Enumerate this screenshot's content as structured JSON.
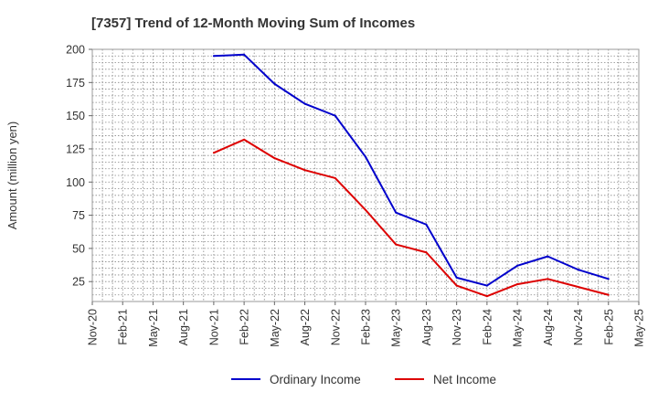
{
  "chart_data": {
    "type": "line",
    "title": "[7357]  Trend of 12-Month Moving Sum of Incomes",
    "ylabel": "Amount (million yen)",
    "xlabel": "",
    "ylim": [
      10,
      200
    ],
    "yticks": [
      25,
      50,
      75,
      100,
      125,
      150,
      175,
      200
    ],
    "ytick_labels": [
      "25",
      "50",
      "75",
      "100",
      "125",
      "150",
      "175",
      "200"
    ],
    "x_months": [
      "Nov-20",
      "Feb-21",
      "May-21",
      "Aug-21",
      "Nov-21",
      "Feb-22",
      "May-22",
      "Aug-22",
      "Nov-22",
      "Feb-23",
      "May-23",
      "Aug-23",
      "Nov-23",
      "Feb-24",
      "May-24",
      "Aug-24",
      "Nov-24",
      "Feb-25",
      "May-25"
    ],
    "grid": true,
    "legend_position": "bottom-center",
    "series": [
      {
        "name": "Ordinary Income",
        "color": "#0000cc",
        "points": [
          {
            "x": "Nov-21",
            "y": 195
          },
          {
            "x": "Feb-22",
            "y": 196
          },
          {
            "x": "May-22",
            "y": 174
          },
          {
            "x": "Aug-22",
            "y": 159
          },
          {
            "x": "Nov-22",
            "y": 150
          },
          {
            "x": "Feb-23",
            "y": 119
          },
          {
            "x": "May-23",
            "y": 77
          },
          {
            "x": "Aug-23",
            "y": 68
          },
          {
            "x": "Nov-23",
            "y": 28
          },
          {
            "x": "Feb-24",
            "y": 22
          },
          {
            "x": "May-24",
            "y": 37
          },
          {
            "x": "Aug-24",
            "y": 44
          },
          {
            "x": "Nov-24",
            "y": 34
          },
          {
            "x": "Feb-25",
            "y": 27
          }
        ]
      },
      {
        "name": "Net Income",
        "color": "#dd0000",
        "points": [
          {
            "x": "Nov-21",
            "y": 122
          },
          {
            "x": "Feb-22",
            "y": 132
          },
          {
            "x": "May-22",
            "y": 118
          },
          {
            "x": "Aug-22",
            "y": 109
          },
          {
            "x": "Nov-22",
            "y": 103
          },
          {
            "x": "Feb-23",
            "y": 79
          },
          {
            "x": "May-23",
            "y": 53
          },
          {
            "x": "Aug-23",
            "y": 47
          },
          {
            "x": "Nov-23",
            "y": 22
          },
          {
            "x": "Feb-24",
            "y": 14
          },
          {
            "x": "May-24",
            "y": 23
          },
          {
            "x": "Aug-24",
            "y": 27
          },
          {
            "x": "Nov-24",
            "y": 21
          },
          {
            "x": "Feb-25",
            "y": 15
          }
        ]
      }
    ]
  }
}
